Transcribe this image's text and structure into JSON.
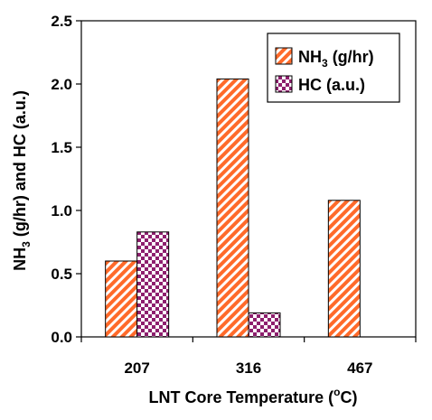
{
  "chart_data": {
    "type": "bar",
    "categories": [
      "207",
      "316",
      "467"
    ],
    "series": [
      {
        "name_main": "NH",
        "name_sub": "3",
        "name_rest": " (g/hr)",
        "values": [
          0.6,
          2.04,
          1.08
        ],
        "color": "#ff6a2a",
        "pattern": "diagonal-stripes"
      },
      {
        "name_main": "HC (a.u.)",
        "name_sub": "",
        "name_rest": "",
        "values": [
          0.83,
          0.19,
          null
        ],
        "color": "#8e1f6e",
        "pattern": "checkerboard"
      }
    ],
    "xlabel": {
      "main": "LNT Core Temperature (",
      "sup": "o",
      "rest": "C)"
    },
    "ylabel": {
      "main": "NH",
      "sub": "3",
      "rest": " (g/hr) and HC (a.u.)"
    },
    "ylim": [
      0,
      2.5
    ],
    "yticks": [
      "0.0",
      "0.5",
      "1.0",
      "1.5",
      "2.0",
      "2.5"
    ],
    "grid": false,
    "legend_position": "top-right"
  }
}
